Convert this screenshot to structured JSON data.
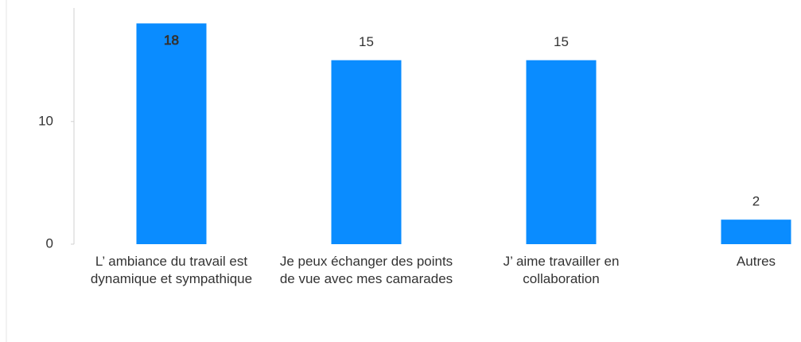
{
  "chart_data": {
    "type": "bar",
    "categories": [
      "L’ ambiance du travail est dynamique et sympathique",
      "Je peux échanger des points de vue avec mes camarades",
      "J’ aime travailler en collaboration",
      "Autres"
    ],
    "values": [
      18,
      15,
      15,
      2
    ],
    "color": "#0a8cff",
    "ylim": [
      0,
      19
    ],
    "yticks": [
      0,
      10
    ],
    "grid": false
  }
}
